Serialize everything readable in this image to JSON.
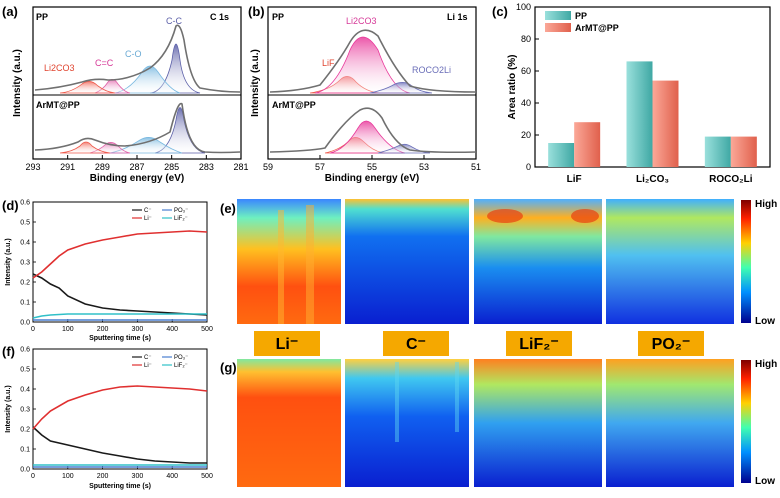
{
  "panels": {
    "a": {
      "letter": "(a)",
      "ylabel": "Intensity (a.u.)",
      "xlabel": "Binding energy (eV)",
      "xticks": [
        "293",
        "291",
        "289",
        "287",
        "285",
        "283",
        "281"
      ],
      "top_sample": "PP",
      "bottom_sample": "ArMT@PP",
      "region": "C 1s",
      "peaks": {
        "li2co3": "Li2CO3",
        "c_eq_c": "C=C",
        "c_o": "C-O",
        "c_c": "C-C"
      }
    },
    "b": {
      "letter": "(b)",
      "ylabel": "Intensity (a.u.)",
      "xlabel": "Binding energy (eV)",
      "xticks": [
        "59",
        "57",
        "55",
        "53",
        "51"
      ],
      "top_sample": "PP",
      "bottom_sample": "ArMT@PP",
      "region": "Li 1s",
      "peaks": {
        "li2co3": "Li2CO3",
        "lif": "LiF",
        "roco2li": "ROCO2Li"
      }
    },
    "c": {
      "letter": "(c)"
    },
    "d": {
      "letter": "(d)"
    },
    "e": {
      "letter": "(e)"
    },
    "f": {
      "letter": "(f)"
    },
    "g": {
      "letter": "(g)"
    }
  },
  "depth_profile_labels": {
    "ylabel": "Intensity (a.u.)",
    "xlabel": "Sputtering time (s)",
    "xticks": [
      "0",
      "100",
      "200",
      "300",
      "400",
      "500"
    ],
    "legend": [
      "C⁻",
      "PO₃⁻",
      "Li⁻",
      "LiF₂⁻"
    ]
  },
  "tof_map_labels": {
    "ions": [
      "Li⁻",
      "C⁻",
      "LiF₂⁻",
      "PO₂⁻"
    ],
    "scale_high": "High",
    "scale_low": "Low"
  },
  "colors": {
    "pp": "#5cc5c0",
    "armt": "#f07866",
    "c_minus": "#1a1a1a",
    "po3": "#4a7fd0",
    "li": "#e03030",
    "lif2": "#30c0c8",
    "ion_badge": "#f5a800"
  },
  "chart_data": [
    {
      "panel": "c",
      "type": "bar",
      "categories": [
        "LiF",
        "Li₂CO₃",
        "ROCO₂Li"
      ],
      "series": [
        {
          "name": "PP",
          "values": [
            15,
            66,
            19
          ]
        },
        {
          "name": "ArMT@PP",
          "values": [
            28,
            54,
            19
          ]
        }
      ],
      "ylabel": "Area ratio (%)",
      "ylim": [
        0,
        100
      ],
      "yticks": [
        "0",
        "20",
        "40",
        "60",
        "80",
        "100"
      ],
      "legend_position": "top-left"
    },
    {
      "panel": "d",
      "type": "line",
      "xlim": [
        0,
        500
      ],
      "ylim": [
        0,
        0.6
      ],
      "yticks": [
        "0.0",
        "0.1",
        "0.2",
        "0.3",
        "0.4",
        "0.5",
        "0.6"
      ],
      "series": [
        {
          "name": "C⁻",
          "x": [
            0,
            25,
            50,
            75,
            100,
            150,
            200,
            250,
            300,
            350,
            400,
            450,
            500
          ],
          "y": [
            0.24,
            0.22,
            0.19,
            0.17,
            0.13,
            0.09,
            0.07,
            0.06,
            0.055,
            0.05,
            0.045,
            0.04,
            0.035
          ]
        },
        {
          "name": "PO₃⁻",
          "x": [
            0,
            50,
            100,
            200,
            300,
            400,
            500
          ],
          "y": [
            0.01,
            0.01,
            0.01,
            0.01,
            0.01,
            0.01,
            0.01
          ]
        },
        {
          "name": "Li⁻",
          "x": [
            0,
            25,
            50,
            75,
            100,
            150,
            200,
            250,
            300,
            350,
            400,
            450,
            500
          ],
          "y": [
            0.22,
            0.25,
            0.29,
            0.33,
            0.36,
            0.39,
            0.41,
            0.425,
            0.44,
            0.445,
            0.45,
            0.455,
            0.45
          ]
        },
        {
          "name": "LiF₂⁻",
          "x": [
            0,
            25,
            50,
            100,
            200,
            300,
            400,
            500
          ],
          "y": [
            0.02,
            0.03,
            0.035,
            0.04,
            0.04,
            0.04,
            0.04,
            0.04
          ]
        }
      ]
    },
    {
      "panel": "f",
      "type": "line",
      "xlim": [
        0,
        500
      ],
      "ylim": [
        0,
        0.6
      ],
      "yticks": [
        "0.0",
        "0.1",
        "0.2",
        "0.3",
        "0.4",
        "0.5",
        "0.6"
      ],
      "series": [
        {
          "name": "C⁻",
          "x": [
            0,
            25,
            50,
            100,
            150,
            200,
            250,
            300,
            350,
            400,
            450,
            500
          ],
          "y": [
            0.21,
            0.17,
            0.14,
            0.12,
            0.1,
            0.08,
            0.065,
            0.05,
            0.04,
            0.035,
            0.03,
            0.03
          ]
        },
        {
          "name": "PO₃⁻",
          "x": [
            0,
            100,
            200,
            300,
            400,
            500
          ],
          "y": [
            0.01,
            0.01,
            0.01,
            0.01,
            0.01,
            0.01
          ]
        },
        {
          "name": "Li⁻",
          "x": [
            0,
            25,
            50,
            100,
            150,
            200,
            250,
            300,
            350,
            400,
            450,
            500
          ],
          "y": [
            0.2,
            0.25,
            0.29,
            0.34,
            0.37,
            0.395,
            0.41,
            0.415,
            0.41,
            0.405,
            0.4,
            0.39
          ]
        },
        {
          "name": "LiF₂⁻",
          "x": [
            0,
            100,
            200,
            300,
            400,
            500
          ],
          "y": [
            0.02,
            0.02,
            0.02,
            0.02,
            0.02,
            0.02
          ]
        }
      ]
    }
  ]
}
